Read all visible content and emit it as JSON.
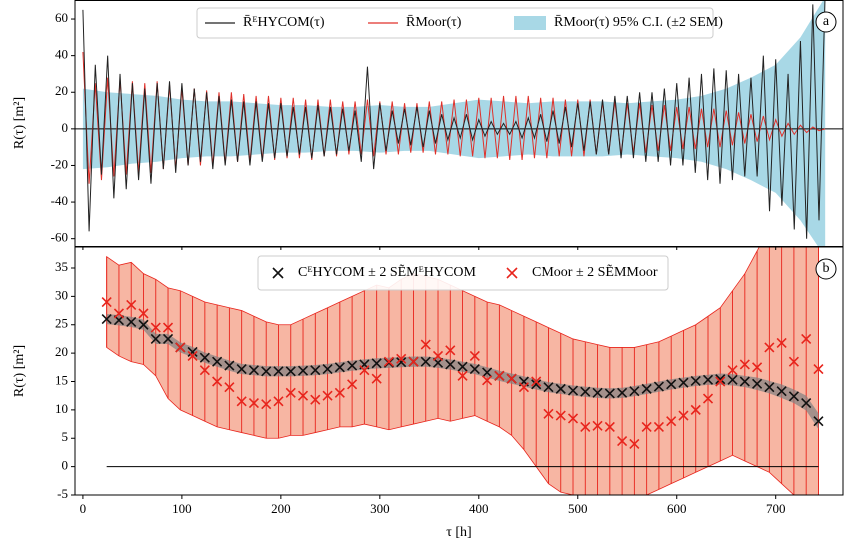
{
  "chart_data": [
    {
      "type": "line",
      "panel_label": "a",
      "ylabel": "R(τ) [m²]",
      "xlim": [
        -8,
        768
      ],
      "ylim": [
        -64,
        70.4
      ],
      "yticks": [
        -60,
        -40,
        -20,
        0,
        20,
        40,
        60
      ],
      "hline": 0,
      "x": [
        0,
        6.25,
        12.5,
        18.75,
        25,
        31.25,
        37.5,
        43.75,
        50,
        56.25,
        62.5,
        68.75,
        75,
        81.25,
        87.5,
        93.75,
        100,
        106.25,
        112.5,
        118.75,
        125,
        131.25,
        137.5,
        143.75,
        150,
        156.25,
        162.5,
        168.75,
        175,
        181.25,
        187.5,
        193.75,
        200,
        206.25,
        212.5,
        218.75,
        225,
        231.25,
        237.5,
        243.75,
        250,
        256.25,
        262.5,
        268.75,
        275,
        281.25,
        287.5,
        293.75,
        300,
        306.25,
        312.5,
        318.75,
        325,
        331.25,
        337.5,
        343.75,
        350,
        356.25,
        362.5,
        368.75,
        375,
        381.25,
        387.5,
        393.75,
        400,
        406.25,
        412.5,
        418.75,
        425,
        431.25,
        437.5,
        443.75,
        450,
        456.25,
        462.5,
        468.75,
        475,
        481.25,
        487.5,
        493.75,
        500,
        506.25,
        512.5,
        518.75,
        525,
        531.25,
        537.5,
        543.75,
        550,
        556.25,
        562.5,
        568.75,
        575,
        581.25,
        587.5,
        593.75,
        600,
        606.25,
        612.5,
        618.75,
        625,
        631.25,
        637.5,
        643.75,
        650,
        656.25,
        662.5,
        668.75,
        675,
        681.25,
        687.5,
        693.75,
        700,
        706.25,
        712.5,
        718.75,
        725,
        731.25,
        737.5,
        743.75,
        750
      ],
      "band": {
        "name": "R̄Moor(τ) 95% C.I. (±2 SEM)",
        "color": "#a8d8e6",
        "x": [
          0,
          25,
          50,
          75,
          100,
          125,
          150,
          175,
          200,
          225,
          250,
          275,
          300,
          325,
          350,
          375,
          400,
          425,
          450,
          475,
          500,
          525,
          550,
          575,
          600,
          625,
          650,
          675,
          700,
          725,
          750
        ],
        "upper": [
          22,
          20,
          19,
          18,
          16,
          15,
          15,
          14,
          13,
          13,
          12,
          12,
          13,
          12,
          12,
          14,
          16,
          15,
          14,
          15,
          15,
          15,
          14,
          15,
          16,
          18,
          22,
          28,
          35,
          50,
          72
        ],
        "lower": [
          -22,
          -21,
          -19,
          -18,
          -16,
          -15,
          -15,
          -14,
          -13,
          -13,
          -12,
          -12,
          -13,
          -12,
          -12,
          -14,
          -16,
          -15,
          -14,
          -15,
          -15,
          -15,
          -14,
          -15,
          -16,
          -18,
          -22,
          -28,
          -35,
          -50,
          -70
        ]
      },
      "series": [
        {
          "name": "R̄ᴱHYCOM(τ)",
          "color": "#222222",
          "values": [
            65,
            -56,
            35,
            -25,
            40,
            -38,
            30,
            -33,
            25,
            -28,
            22,
            -30,
            25,
            -22,
            26,
            -24,
            25,
            -20,
            22,
            -18,
            20,
            -22,
            18,
            -20,
            16,
            -18,
            15,
            -20,
            15,
            -18,
            14,
            -16,
            14,
            -15,
            12,
            -14,
            12,
            -16,
            13,
            -15,
            12,
            -14,
            11,
            -12,
            10,
            -18,
            34,
            -22,
            14,
            -12,
            10,
            -8,
            11,
            -9,
            12,
            -10,
            10,
            -8,
            8,
            -6,
            6,
            -5,
            8,
            -6,
            5,
            -4,
            4,
            -3,
            3,
            -3,
            4,
            -5,
            6,
            -5,
            8,
            -7,
            10,
            -8,
            12,
            -10,
            14,
            -12,
            15,
            -14,
            16,
            -14,
            18,
            -16,
            18,
            -16,
            20,
            -18,
            20,
            -18,
            22,
            -20,
            25,
            -20,
            28,
            -24,
            30,
            -28,
            33,
            -30,
            32,
            -28,
            30,
            -26,
            28,
            -26,
            40,
            -45,
            38,
            -42,
            30,
            -55,
            48,
            -60,
            68,
            -50,
            75
          ]
        },
        {
          "name": "R̄Moor(τ)",
          "color": "#e0302a",
          "values": [
            42,
            -30,
            25,
            -28,
            28,
            -26,
            27,
            -25,
            26,
            -24,
            25,
            -24,
            26,
            -22,
            24,
            -22,
            22,
            -20,
            22,
            -20,
            21,
            -20,
            20,
            -19,
            20,
            -18,
            19,
            -18,
            18,
            -17,
            18,
            -17,
            17,
            -16,
            17,
            -16,
            16,
            -17,
            16,
            -15,
            16,
            -15,
            15,
            -14,
            15,
            -14,
            16,
            -15,
            15,
            -14,
            15,
            -14,
            14,
            -13,
            14,
            -13,
            15,
            -14,
            15,
            -14,
            16,
            -15,
            16,
            -15,
            17,
            -16,
            17,
            -16,
            18,
            -17,
            18,
            -17,
            18,
            -16,
            17,
            -16,
            17,
            -15,
            16,
            -15,
            16,
            -15,
            16,
            -14,
            15,
            -14,
            15,
            -14,
            14,
            -13,
            14,
            -13,
            13,
            -12,
            13,
            -12,
            12,
            -11,
            12,
            -11,
            11,
            -10,
            11,
            -10,
            10,
            -9,
            9,
            -8,
            8,
            -7,
            7,
            -6,
            5,
            -4,
            3,
            -3,
            2,
            -2,
            1,
            -1,
            0
          ]
        }
      ]
    },
    {
      "type": "errorbar",
      "panel_label": "b",
      "ylabel": "R(τ) [m²]",
      "xlabel": "τ [h]",
      "xlim": [
        -8,
        768
      ],
      "ylim": [
        -5,
        38.7
      ],
      "xticks": [
        0,
        100,
        200,
        300,
        400,
        500,
        600,
        700
      ],
      "yticks": [
        -5,
        0,
        5,
        10,
        15,
        20,
        25,
        30,
        35
      ],
      "hline": 0,
      "x": [
        24.0,
        36.4,
        48.8,
        61.2,
        73.6,
        86.0,
        98.4,
        110.8,
        123.2,
        135.6,
        148.0,
        160.4,
        172.8,
        185.2,
        197.6,
        210.0,
        222.4,
        234.8,
        247.2,
        259.6,
        272.0,
        284.4,
        296.8,
        309.2,
        321.6,
        334.0,
        346.4,
        358.8,
        371.2,
        383.6,
        396.0,
        408.4,
        420.8,
        433.2,
        445.6,
        458.0,
        470.4,
        482.8,
        495.2,
        507.6,
        520.0,
        532.4,
        544.8,
        557.2,
        569.6,
        582.0,
        594.4,
        606.8,
        619.2,
        631.6,
        644.0,
        656.4,
        668.8,
        681.2,
        693.6,
        706.0,
        718.4,
        730.8,
        743.2
      ],
      "series": [
        {
          "name": "CᴱHYCOM ± 2 SẼMᴱHYCOM",
          "color": "#111111",
          "band_color": "#808080",
          "values": [
            26,
            25.8,
            25.5,
            25,
            22.5,
            22.5,
            21,
            20.2,
            19.2,
            18.5,
            17.8,
            17.2,
            17,
            16.8,
            16.8,
            16.8,
            16.9,
            17,
            17.2,
            17.5,
            17.8,
            18,
            18.2,
            18.3,
            18.4,
            18.5,
            18.5,
            18.3,
            18,
            17.6,
            17.2,
            16.6,
            16,
            15.5,
            15,
            14.5,
            14,
            13.7,
            13.4,
            13.2,
            13,
            12.9,
            13,
            13.3,
            13.7,
            14.1,
            14.5,
            14.8,
            15.1,
            15.3,
            15.4,
            15.3,
            15.0,
            14.6,
            14.0,
            13.3,
            12.4,
            11.2,
            8
          ],
          "errors": [
            0.9,
            0.9,
            0.9,
            0.9,
            0.9,
            0.9,
            0.9,
            0.9,
            0.9,
            0.9,
            0.9,
            0.9,
            0.9,
            0.9,
            0.9,
            0.9,
            0.9,
            0.9,
            0.9,
            0.9,
            0.9,
            0.9,
            0.9,
            0.9,
            0.9,
            0.9,
            0.9,
            0.9,
            0.9,
            0.9,
            0.9,
            0.9,
            0.9,
            0.9,
            0.9,
            0.9,
            0.9,
            0.9,
            0.9,
            0.9,
            0.9,
            0.9,
            0.9,
            0.9,
            0.9,
            0.9,
            0.9,
            0.9,
            0.9,
            0.9,
            1,
            1,
            1,
            1.1,
            1.1,
            1.2,
            1.2,
            1.3,
            1.4
          ]
        },
        {
          "name": "CMoor ± 2 SẼMMoor",
          "color": "#e8241c",
          "band_color": "#f5a48c",
          "values": [
            29,
            27,
            28.5,
            27,
            24.5,
            24.5,
            21,
            19.5,
            17,
            15,
            14,
            11.5,
            11.2,
            11,
            11.5,
            13,
            12.5,
            11.8,
            12.5,
            13,
            14.5,
            17,
            15.5,
            18.5,
            19,
            18.5,
            21.5,
            19.5,
            20.5,
            16,
            19.5,
            15.2,
            16,
            15.5,
            14,
            15,
            9.3,
            9,
            8.5,
            7,
            7.2,
            7,
            4.5,
            4,
            7,
            7,
            8,
            9,
            10,
            12,
            15,
            17,
            18,
            17.5,
            21,
            21.8,
            18.5,
            22.5,
            17.2
          ],
          "upper": [
            37,
            35.5,
            36,
            34,
            33,
            31.5,
            31,
            30,
            29,
            28.5,
            28,
            27.5,
            26.5,
            25.5,
            25,
            25,
            26,
            27,
            28,
            29,
            30,
            31,
            32,
            31.5,
            33,
            34,
            33.5,
            33,
            32,
            31,
            30,
            29,
            28.5,
            27.5,
            26.5,
            25.5,
            24.5,
            23.5,
            22.5,
            22,
            21.5,
            21,
            21,
            21,
            21.5,
            22,
            23,
            24,
            25,
            26.5,
            28,
            31,
            34,
            38,
            42,
            45,
            46,
            46,
            44
          ],
          "lower": [
            21,
            19.5,
            18.5,
            18,
            16,
            12,
            10,
            9,
            8,
            7,
            6.5,
            6,
            5.5,
            5,
            5,
            5.5,
            5.5,
            6,
            6.5,
            7,
            7,
            7.5,
            7,
            6.5,
            7,
            7.5,
            8,
            8.5,
            8,
            8.5,
            9,
            8,
            7,
            5.5,
            3,
            0,
            -3,
            -4.5,
            -5,
            -5.5,
            -6,
            -6,
            -6,
            -6,
            -5,
            -4,
            -3,
            -2,
            -1,
            0,
            1,
            2,
            1,
            0,
            -1,
            -3,
            -5,
            -7,
            -8
          ]
        }
      ]
    }
  ]
}
